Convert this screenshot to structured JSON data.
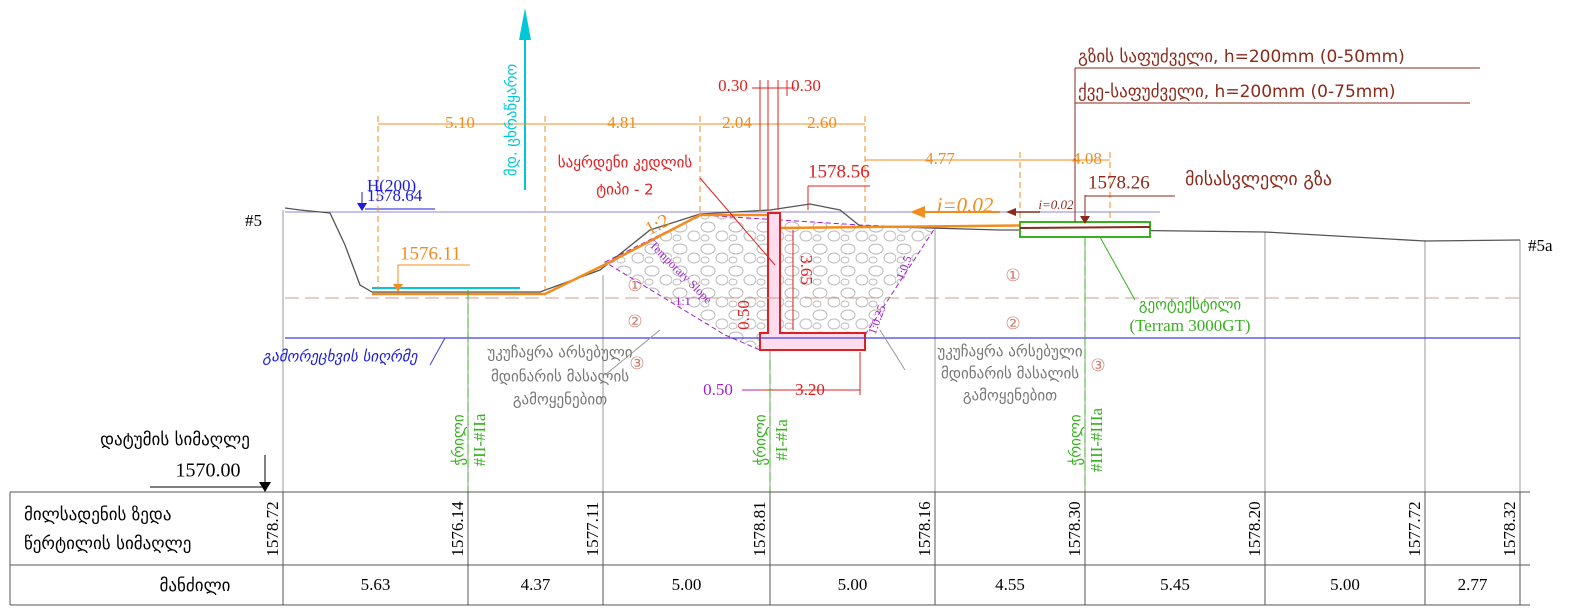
{
  "section": {
    "left_mark": "#5",
    "right_mark": "#5a"
  },
  "river": "მდ. ცხრაწყარო",
  "water": {
    "label": "H(200)",
    "level": "1578.64",
    "bed": "1576.11"
  },
  "dimensions": {
    "top": [
      "5.10",
      "4.81",
      "2.04",
      "2.60"
    ],
    "wall_top": [
      "0.30",
      "0.30"
    ],
    "road": [
      "4.77",
      "4.08"
    ],
    "base": [
      "0.50",
      "3.20"
    ],
    "stem_height": "3.65",
    "footing": "0.50"
  },
  "wall": {
    "label": [
      "საყრდენი კედლის",
      "ტიპი - 2"
    ],
    "top_level": "1578.56"
  },
  "slopes": {
    "fill": "1:2",
    "temporary": "Temporary Slope",
    "temporary_ratio": "1:1",
    "front": "1:0.25",
    "back": "1:0.5"
  },
  "road": {
    "grade": "i=0.02",
    "grade_small": "i=0.02",
    "level": "1578.26",
    "name": "მისასვლელი გზა",
    "base": "გზის საფუძველი, h=200mm (0-50mm)",
    "subbase": "ქვე-საფუძველი, h=200mm (0-75mm)"
  },
  "layers": [
    "①",
    "②",
    "③"
  ],
  "geotextile": [
    "გეოტექსტილი",
    "(Terram 3000GT)"
  ],
  "scour": "გამორეცხვის სიღრმე",
  "backfill": [
    "უკუჩაყრა არსებული",
    "მდინარის მასალის",
    "გამოყენებით"
  ],
  "cuts": [
    {
      "word": "ჭრილი",
      "id": "#II-#IIa"
    },
    {
      "word": "ჭრილი",
      "id": "#I-#Ia"
    },
    {
      "word": "ჭრილი",
      "id": "#III-#IIIa"
    }
  ],
  "datum": {
    "label": "დატუმის სიმაღლე",
    "value": "1570.00"
  },
  "table": {
    "elevation_header": [
      "მილსადენის ზედა",
      "წერტილის სიმაღლე"
    ],
    "elevations": [
      "1578.72",
      "1576.14",
      "1577.11",
      "1578.81",
      "1578.16",
      "1578.30",
      "1578.20",
      "1577.72",
      "1578.32"
    ],
    "distance_header": "მანძილი",
    "distances": [
      "5.63",
      "4.37",
      "5.00",
      "5.00",
      "4.55",
      "5.45",
      "5.00",
      "2.77"
    ]
  }
}
